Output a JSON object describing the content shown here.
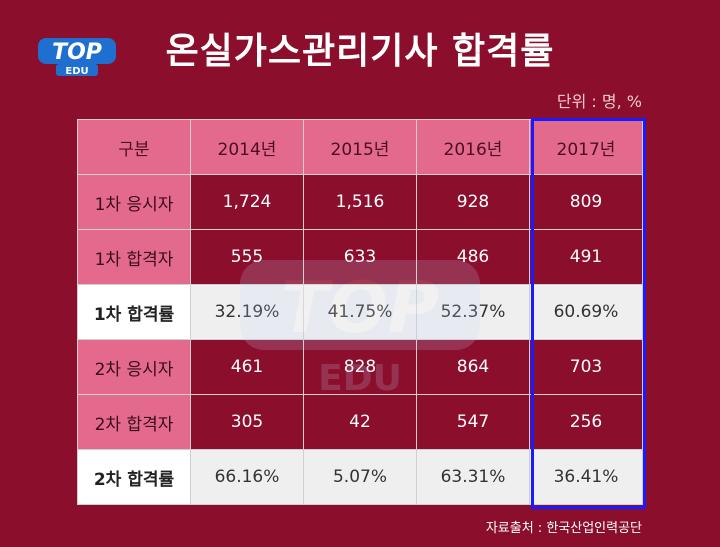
{
  "logo": {
    "text_top": "TOP",
    "text_bottom": "EDU"
  },
  "title": "온실가스관리기사 합격률",
  "unit": "단위 : 명, %",
  "table": {
    "headers": [
      "구분",
      "2014년",
      "2015년",
      "2016년",
      "2017년"
    ],
    "rows": [
      {
        "label": "1차 응시자",
        "values": [
          "1,724",
          "1,516",
          "928",
          "809"
        ]
      },
      {
        "label": "1차 합격자",
        "values": [
          "555",
          "633",
          "486",
          "491"
        ]
      },
      {
        "label": "1차 합격률",
        "values": [
          "32.19%",
          "41.75%",
          "52.37%",
          "60.69%"
        ]
      },
      {
        "label": "2차 응시자",
        "values": [
          "461",
          "828",
          "864",
          "703"
        ]
      },
      {
        "label": "2차 합격자",
        "values": [
          "305",
          "42",
          "547",
          "256"
        ]
      },
      {
        "label": "2차 합격률",
        "values": [
          "66.16%",
          "5.07%",
          "63.31%",
          "36.41%"
        ]
      }
    ]
  },
  "source": "자료출처 : 한국산업인력공단",
  "colors": {
    "background": "#8b0f2d",
    "header": "#e36a8d",
    "highlight": "#1a1aff"
  }
}
